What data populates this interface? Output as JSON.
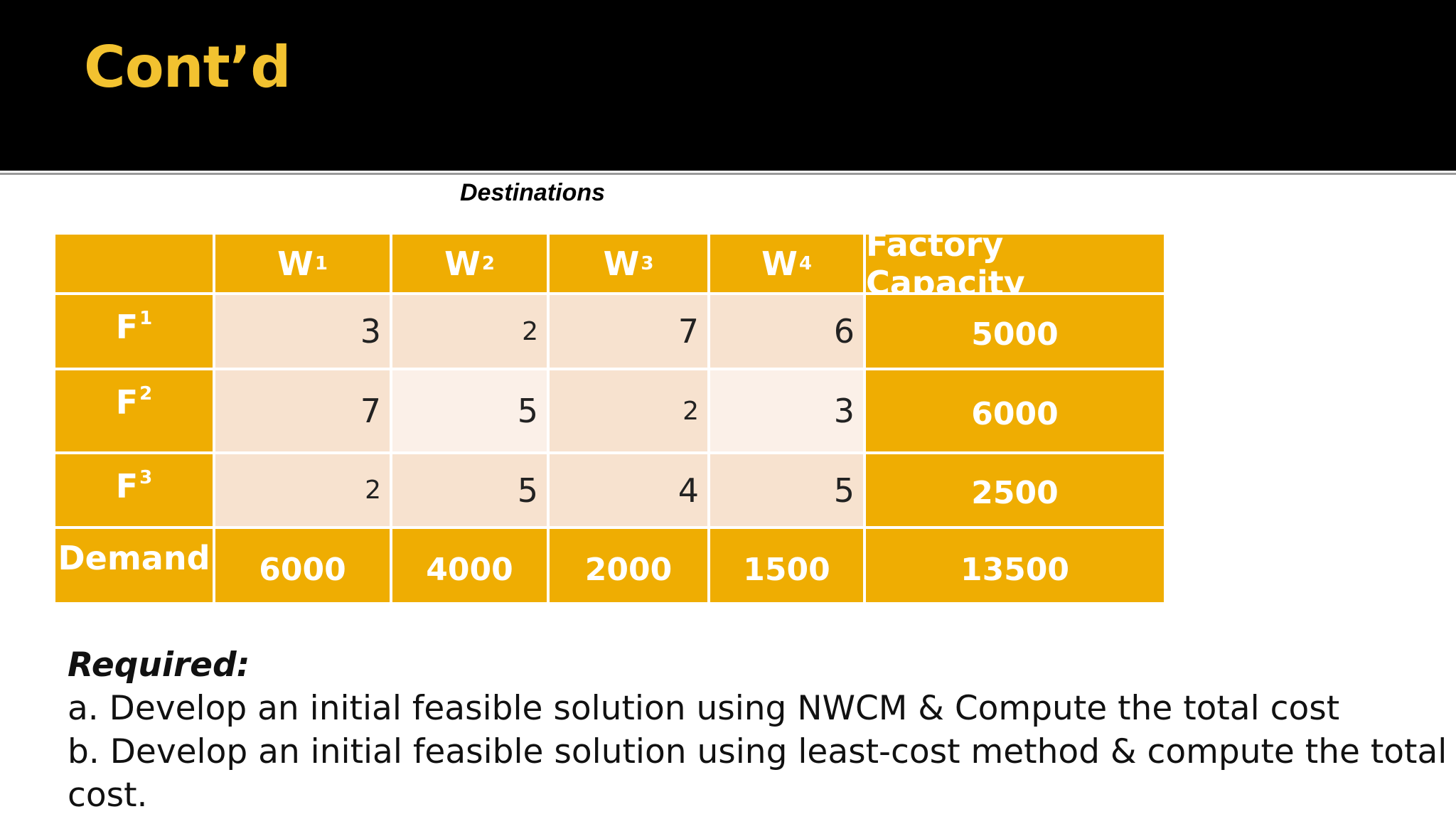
{
  "slide": {
    "title": "Cont’d",
    "destinations_label": "Destinations"
  },
  "table": {
    "columns": [
      {
        "letter": "W",
        "sub": "1"
      },
      {
        "letter": "W",
        "sub": "2"
      },
      {
        "letter": "W",
        "sub": "3"
      },
      {
        "letter": "W",
        "sub": "4"
      }
    ],
    "capacity_header": "Factory Capacity",
    "rows": [
      {
        "letter": "F",
        "sub": "1",
        "costs": [
          "3",
          "2",
          "7",
          "6"
        ],
        "capacity": "5000"
      },
      {
        "letter": "F",
        "sub": "2",
        "costs": [
          "7",
          "5",
          "2",
          "3"
        ],
        "capacity": "6000"
      },
      {
        "letter": "F",
        "sub": "3",
        "costs": [
          "2",
          "5",
          "4",
          "5"
        ],
        "capacity": "2500"
      }
    ],
    "demand_label": "Demand",
    "demand": [
      "6000",
      "4000",
      "2000",
      "1500"
    ],
    "total": "13500"
  },
  "required": {
    "heading": "Required:",
    "items": [
      "a. Develop an initial feasible solution using NWCM & Compute the total cost",
      "b. Develop an initial feasible solution using least-cost method & compute the total cost."
    ]
  },
  "colors": {
    "header_bg": "#000000",
    "title": "#f2c230",
    "table_gold": "#efad02",
    "cell_light": "#f7e2cf",
    "cell_lighter": "#fbf0e8"
  }
}
